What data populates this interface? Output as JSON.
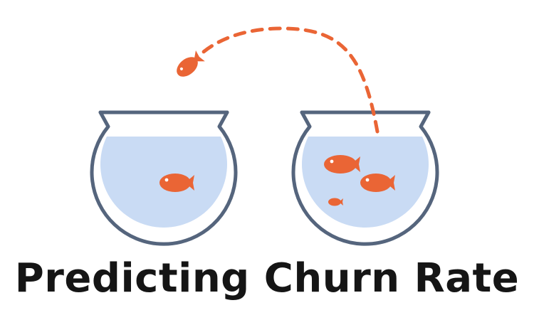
{
  "title": "Predicting Churn Rate",
  "colors": {
    "background": "#ffffff",
    "bowl_outline": "#55657d",
    "water": "#c9dbf4",
    "fish": "#ea6535",
    "trajectory": "#ea6535",
    "title_text": "#151515"
  },
  "illustration": {
    "left_bowl": {
      "fish_count": 1
    },
    "right_bowl": {
      "fish_count": 3
    },
    "leaping_fish": {
      "direction": "leaving bowl along dashed arc"
    }
  }
}
